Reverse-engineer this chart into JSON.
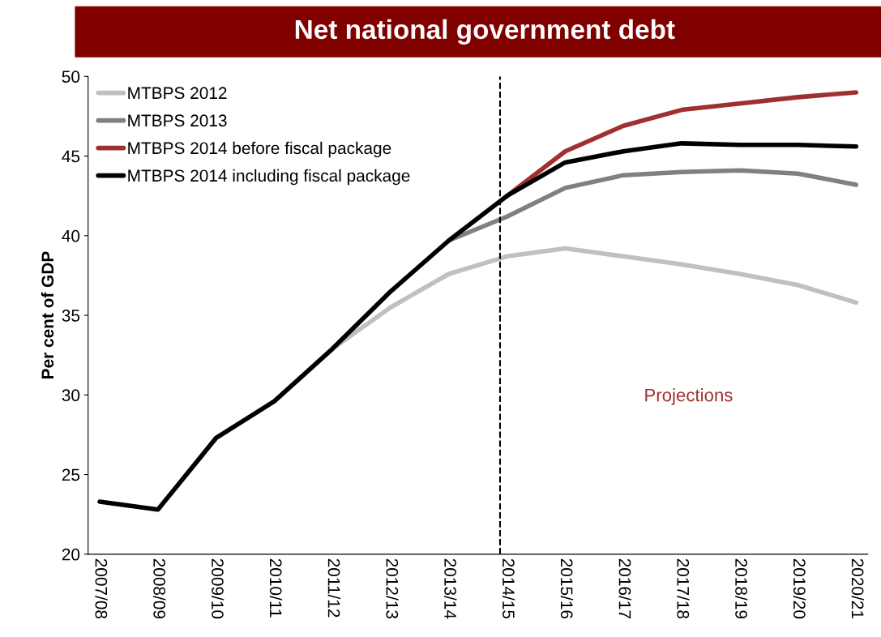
{
  "chart_data": {
    "type": "line",
    "title": "Net national government debt",
    "ylabel": "Per cent of GDP",
    "categories": [
      "2007/08",
      "2008/09",
      "2009/10",
      "2010/11",
      "2011/12",
      "2012/13",
      "2013/14",
      "2014/15",
      "2015/16",
      "2016/17",
      "2017/18",
      "2018/19",
      "2019/20",
      "2020/21"
    ],
    "series": [
      {
        "name": "MTBPS 2012",
        "color": "#c0c0c0",
        "values": [
          null,
          null,
          null,
          null,
          32.9,
          35.5,
          37.6,
          38.7,
          39.2,
          38.7,
          38.2,
          37.6,
          36.9,
          35.8
        ]
      },
      {
        "name": "MTBPS 2013",
        "color": "#808080",
        "values": [
          null,
          null,
          null,
          null,
          null,
          null,
          39.7,
          41.2,
          43.0,
          43.8,
          44.0,
          44.1,
          43.9,
          43.2
        ]
      },
      {
        "name": "MTBPS 2014 before fiscal package",
        "color": "#a03030",
        "values": [
          null,
          null,
          null,
          null,
          null,
          null,
          null,
          42.5,
          45.3,
          46.9,
          47.9,
          48.3,
          48.7,
          49.0
        ]
      },
      {
        "name": "MTBPS 2014 including fiscal package",
        "color": "#000000",
        "values": [
          23.3,
          22.8,
          27.3,
          29.6,
          32.9,
          36.5,
          39.7,
          42.5,
          44.6,
          45.3,
          45.8,
          45.7,
          45.7,
          45.6
        ]
      }
    ],
    "ylim": [
      20,
      50
    ],
    "yticks": [
      20,
      25,
      30,
      35,
      40,
      45,
      50
    ],
    "ref_lines": [
      {
        "axis": "x",
        "value": "2014/15",
        "color": "#000000",
        "line_style": "dashed"
      }
    ],
    "annotations": [
      "Projections"
    ],
    "legend": "top left",
    "grid": false,
    "marker": "none",
    "line_style": "solid"
  }
}
